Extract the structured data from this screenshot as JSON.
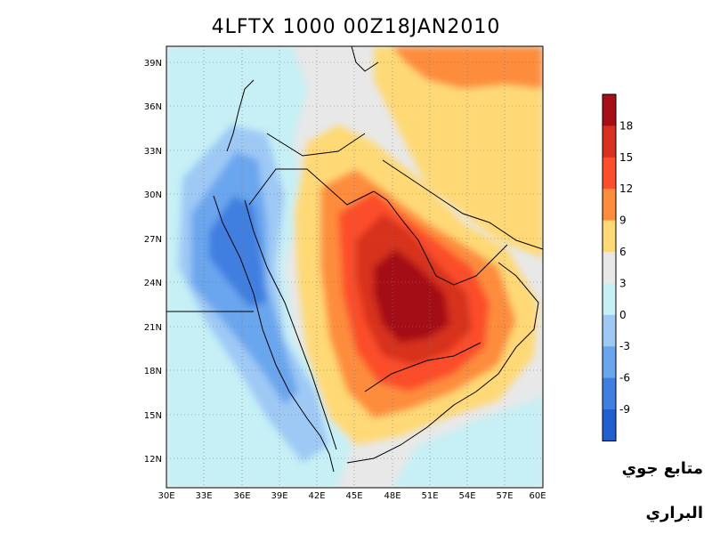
{
  "title": "4LFTX 1000 00Z18JAN2010",
  "latitude_labels": [
    "39N",
    "36N",
    "33N",
    "30N",
    "27N",
    "24N",
    "21N",
    "18N",
    "15N",
    "12N"
  ],
  "longitude_labels": [
    "30E",
    "33E",
    "36E",
    "39E",
    "42E",
    "45E",
    "48E",
    "51E",
    "54E",
    "57E",
    "60E"
  ],
  "colorbar": {
    "labels": [
      "18",
      "15",
      "12",
      "9",
      "6",
      "3",
      "0",
      "-3",
      "-6",
      "-9"
    ],
    "colors": [
      "#a50f15",
      "#d7301f",
      "#fc4e2a",
      "#fd8d3c",
      "#fed976",
      "#e8e8e8",
      "#c6f0f5",
      "#9ec9f5",
      "#6aa6ee",
      "#3f7fe0",
      "#1f5fd0"
    ]
  },
  "signature": {
    "line1": "متابع جوي",
    "line2": "البراري"
  }
}
